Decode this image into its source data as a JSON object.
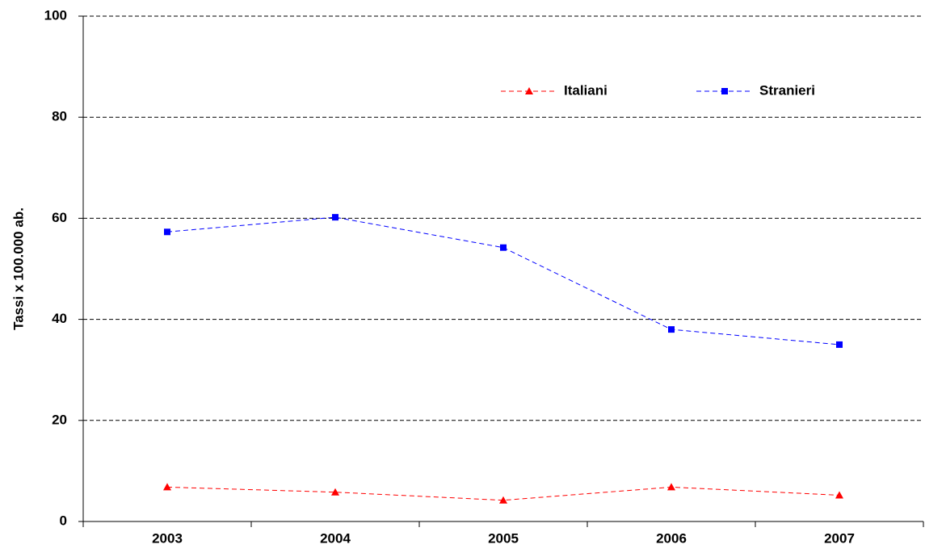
{
  "chart_data": {
    "type": "line",
    "y_label": "Tassi x 100.000 ab.",
    "categories": [
      "2003",
      "2004",
      "2005",
      "2006",
      "2007"
    ],
    "series": [
      {
        "name": "Italiani",
        "color": "#ff0000",
        "marker": "triangle",
        "values": [
          6.8,
          5.8,
          4.2,
          6.8,
          5.2
        ]
      },
      {
        "name": "Stranieri",
        "color": "#0000ff",
        "marker": "square",
        "values": [
          57.3,
          60.2,
          54.2,
          38.0,
          35.0
        ]
      }
    ],
    "trendline": true,
    "ylim": [
      0,
      100
    ],
    "yticks": [
      0,
      20,
      40,
      60,
      80,
      100
    ],
    "grid": true
  }
}
